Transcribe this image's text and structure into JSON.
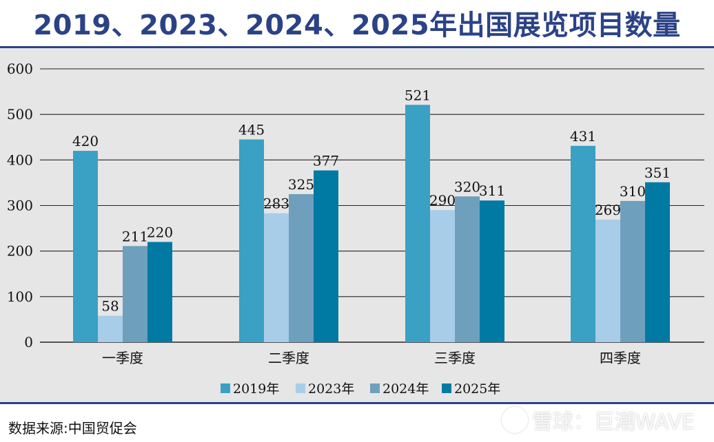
{
  "title": "2019、2023、2024、2025年出国展览项目数量",
  "source": "数据来源:中国贸促会",
  "watermark": {
    "text": "雪球：巨潮WAVE"
  },
  "chart_data": {
    "type": "bar",
    "categories": [
      "一季度",
      "二季度",
      "三季度",
      "四季度"
    ],
    "series": [
      {
        "name": "2019年",
        "values": [
          420,
          445,
          521,
          431
        ],
        "color": "#3aa0c4"
      },
      {
        "name": "2023年",
        "values": [
          58,
          283,
          290,
          269
        ],
        "color": "#a8cde9"
      },
      {
        "name": "2024年",
        "values": [
          211,
          325,
          320,
          310
        ],
        "color": "#6e9fbd"
      },
      {
        "name": "2025年",
        "values": [
          220,
          377,
          311,
          351
        ],
        "color": "#007aa3"
      }
    ],
    "ylim": [
      0,
      600
    ],
    "yticks": [
      0,
      100,
      200,
      300,
      400,
      500,
      600
    ],
    "grid": true,
    "legend": "bottom",
    "data_labels": true
  }
}
